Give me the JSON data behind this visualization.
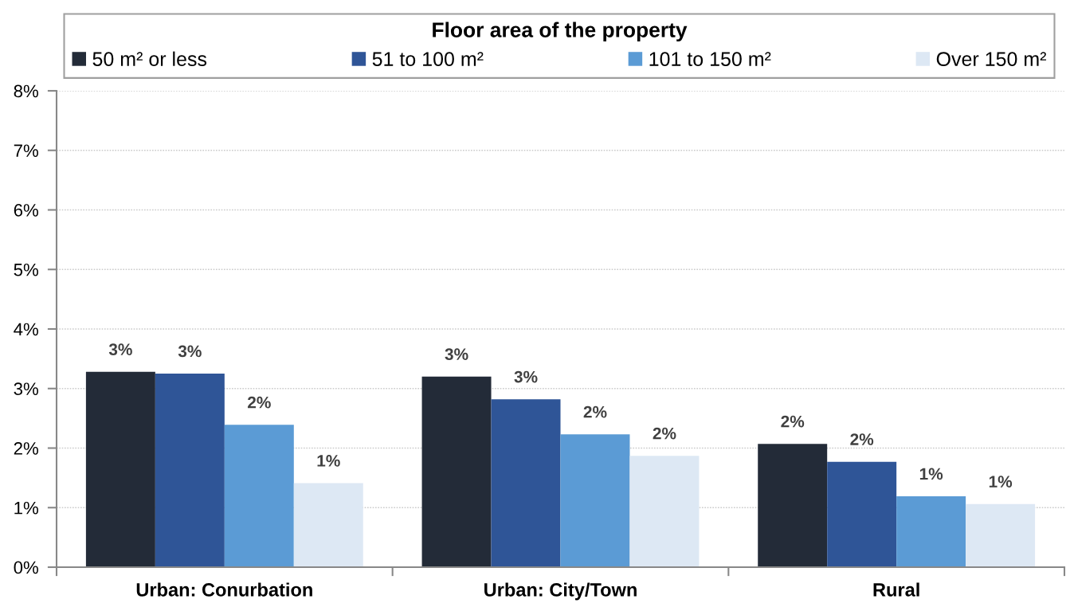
{
  "chart_data": {
    "type": "bar",
    "categories": [
      "Urban: Conurbation",
      "Urban: City/Town",
      "Rural"
    ],
    "legend_title": "Floor area of the property",
    "series": [
      {
        "name": "50 m² or less",
        "color": "#232b38",
        "values": [
          3.28,
          3.2,
          2.07
        ],
        "value_labels": [
          "3%",
          "3%",
          "2%"
        ]
      },
      {
        "name": "51 to 100 m²",
        "color": "#2f5597",
        "values": [
          3.25,
          2.82,
          1.77
        ],
        "value_labels": [
          "3%",
          "3%",
          "2%"
        ]
      },
      {
        "name": "101 to 150 m²",
        "color": "#5b9bd5",
        "values": [
          2.39,
          2.23,
          1.19
        ],
        "value_labels": [
          "2%",
          "2%",
          "1%"
        ]
      },
      {
        "name": "Over 150 m²",
        "color": "#dde8f4",
        "values": [
          1.41,
          1.87,
          1.06
        ],
        "value_labels": [
          "1%",
          "2%",
          "1%"
        ]
      }
    ],
    "ylim": [
      0,
      8
    ],
    "yticks": [
      {
        "value": 0,
        "label": "0%"
      },
      {
        "value": 1,
        "label": "1%"
      },
      {
        "value": 2,
        "label": "2%"
      },
      {
        "value": 3,
        "label": "3%"
      },
      {
        "value": 4,
        "label": "4%"
      },
      {
        "value": 5,
        "label": "5%"
      },
      {
        "value": 6,
        "label": "6%"
      },
      {
        "value": 7,
        "label": "7%"
      },
      {
        "value": 8,
        "label": "8%"
      }
    ],
    "grid": "y",
    "legend": "top"
  }
}
